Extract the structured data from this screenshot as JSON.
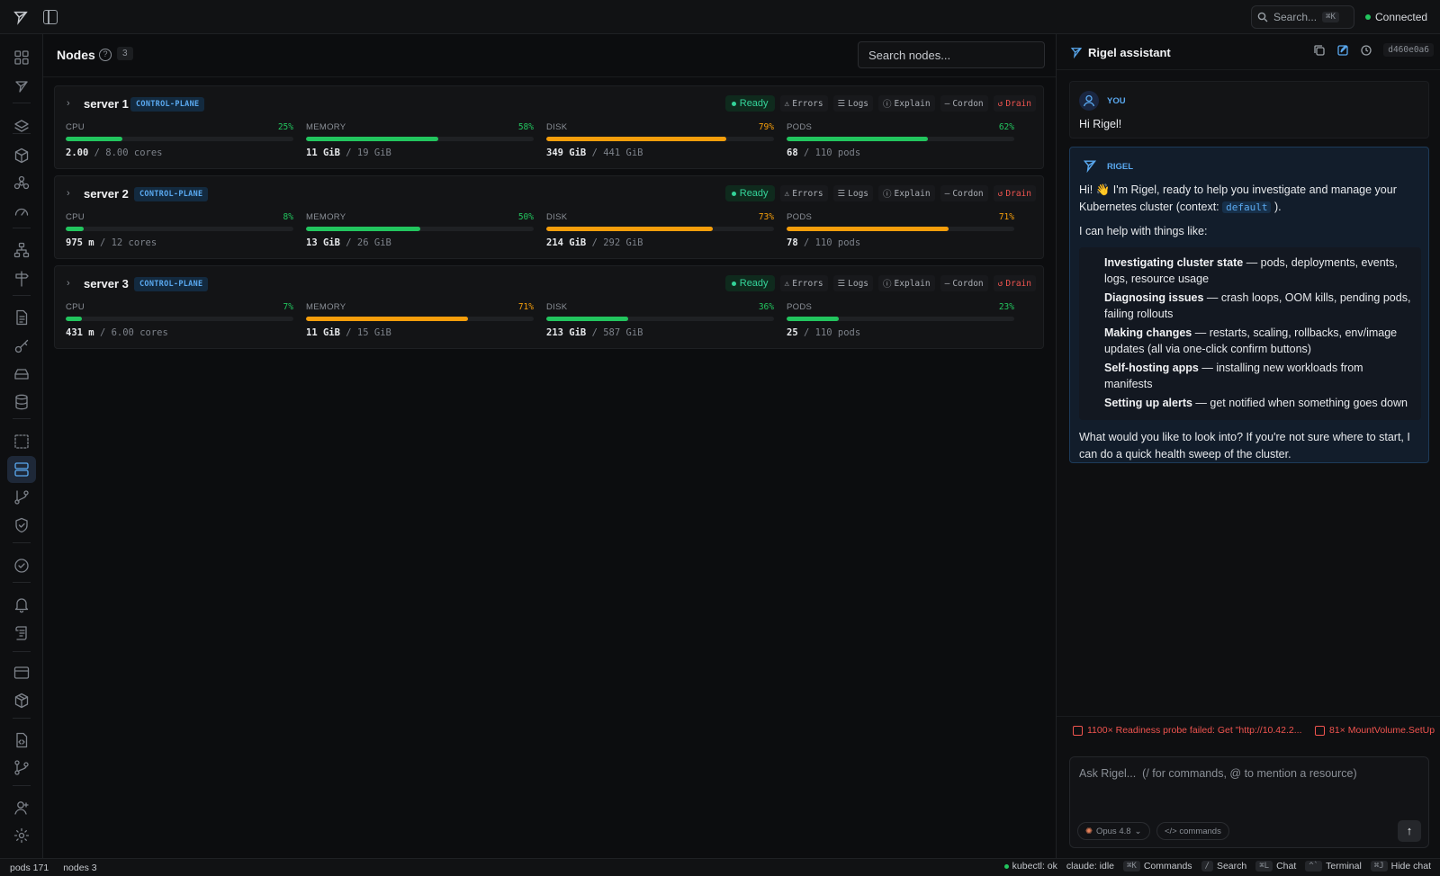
{
  "topbar": {
    "search_label": "Search...",
    "search_shortcut": "⌘K",
    "connection_status": "Connected",
    "connection_color": "#22c55e"
  },
  "sidebar": {
    "icons": [
      "grid-icon",
      "rigel-icon",
      "layers-icon",
      "cube-icon",
      "cluster-icon",
      "gauge-icon",
      "network-icon",
      "signpost-icon",
      "file-icon",
      "key-icon",
      "drive-icon",
      "database-icon",
      "select-icon",
      "server-icon",
      "git-branch-icon",
      "shield-icon",
      "check-circle-icon",
      "bell-icon",
      "scroll-icon",
      "window-icon",
      "package-icon",
      "file-code-icon",
      "git-fork-icon",
      "user-icon",
      "settings-icon"
    ],
    "active": "server-icon"
  },
  "main": {
    "title": "Nodes",
    "count": "3",
    "search_placeholder": "Search nodes...",
    "actions": {
      "ready": "Ready",
      "errors": "Errors",
      "logs": "Logs",
      "explain": "Explain",
      "cordon": "Cordon",
      "drain": "Drain"
    },
    "metric_labels": {
      "cpu": "CPU",
      "memory": "MEMORY",
      "disk": "DISK",
      "pods": "PODS"
    },
    "nodes": [
      {
        "name": "server 1",
        "role": "CONTROL-PLANE",
        "cpu": {
          "pct": "25%",
          "used": "2.00",
          "total": "/ 8.00 cores",
          "fill": 25,
          "color": "#22c55e"
        },
        "memory": {
          "pct": "58%",
          "used": "11 GiB",
          "total": "/ 19 GiB",
          "fill": 58,
          "color": "#22c55e"
        },
        "disk": {
          "pct": "79%",
          "used": "349 GiB",
          "total": "/ 441 GiB",
          "fill": 79,
          "color": "#f59e0b"
        },
        "pods": {
          "pct": "62%",
          "used": "68",
          "total": "/ 110 pods",
          "fill": 62,
          "color": "#22c55e"
        }
      },
      {
        "name": "server 2",
        "role": "CONTROL-PLANE",
        "cpu": {
          "pct": "8%",
          "used": "975 m",
          "total": "/ 12 cores",
          "fill": 8,
          "color": "#22c55e"
        },
        "memory": {
          "pct": "50%",
          "used": "13 GiB",
          "total": "/ 26 GiB",
          "fill": 50,
          "color": "#22c55e"
        },
        "disk": {
          "pct": "73%",
          "used": "214 GiB",
          "total": "/ 292 GiB",
          "fill": 73,
          "color": "#f59e0b"
        },
        "pods": {
          "pct": "71%",
          "used": "78",
          "total": "/ 110 pods",
          "fill": 71,
          "color": "#f59e0b"
        }
      },
      {
        "name": "server 3",
        "role": "CONTROL-PLANE",
        "cpu": {
          "pct": "7%",
          "used": "431 m",
          "total": "/ 6.00 cores",
          "fill": 7,
          "color": "#22c55e"
        },
        "memory": {
          "pct": "71%",
          "used": "11 GiB",
          "total": "/ 15 GiB",
          "fill": 71,
          "color": "#f59e0b"
        },
        "disk": {
          "pct": "36%",
          "used": "213 GiB",
          "total": "/ 587 GiB",
          "fill": 36,
          "color": "#22c55e"
        },
        "pods": {
          "pct": "23%",
          "used": "25",
          "total": "/ 110 pods",
          "fill": 23,
          "color": "#22c55e"
        }
      }
    ]
  },
  "assistant": {
    "title": "Rigel assistant",
    "session_id": "d460e0a6",
    "you_label": "YOU",
    "you_message": "Hi Rigel!",
    "rigel_label": "RIGEL",
    "intro_a": "Hi! 👋 I'm Rigel, ready to help you investigate and manage your Kubernetes cluster (context:",
    "context": "default",
    "intro_b": ").",
    "help_lead": "I can help with things like:",
    "items": [
      {
        "title": "Investigating cluster state",
        "desc": " — pods, deployments, events, logs, resource usage"
      },
      {
        "title": "Diagnosing issues",
        "desc": " — crash loops, OOM kills, pending pods, failing rollouts"
      },
      {
        "title": "Making changes",
        "desc": " — restarts, scaling, rollbacks, env/image updates (all via one-click confirm buttons)"
      },
      {
        "title": "Self-hosting apps",
        "desc": " — installing new workloads from manifests"
      },
      {
        "title": "Setting up alerts",
        "desc": " — get notified when something goes down"
      }
    ],
    "closing": "What would you like to look into? If you're not sure where to start, I can do a quick health sweep of the cluster.",
    "events": [
      "1100× Readiness probe failed: Get \"http://10.42.2...",
      "81× MountVolume.SetUp"
    ],
    "input_placeholder": "Ask Rigel...  (/ for commands, @ to mention a resource)",
    "model_label": "Opus 4.8",
    "commands_label": "</> commands"
  },
  "statusbar": {
    "pods": "pods 171",
    "nodes": "nodes 3",
    "kubectl": "kubectl: ok",
    "claude": "claude: idle",
    "shortcuts": [
      {
        "key": "⌘K",
        "label": "Commands"
      },
      {
        "key": "/",
        "label": "Search"
      },
      {
        "key": "⌘L",
        "label": "Chat"
      },
      {
        "key": "^`",
        "label": "Terminal"
      },
      {
        "key": "⌘J",
        "label": "Hide chat"
      }
    ]
  }
}
